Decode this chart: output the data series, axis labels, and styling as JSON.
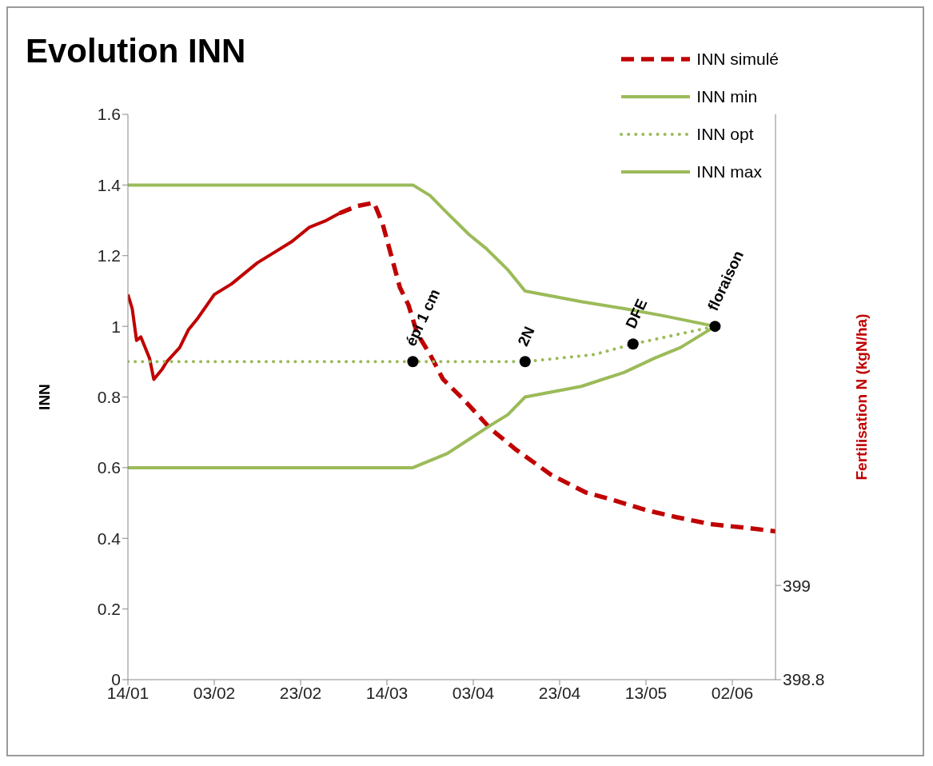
{
  "chart_data": {
    "type": "line",
    "title": "Evolution INN",
    "ylabel": "INN",
    "y2label": "Fertilisation N (kgN/ha)",
    "xlim": [
      "--01-14",
      "--06-12"
    ],
    "xticks": [
      {
        "value": "--01-14",
        "label": "14/01"
      },
      {
        "value": "--02-03",
        "label": "03/02"
      },
      {
        "value": "--02-23",
        "label": "23/02"
      },
      {
        "value": "--03-14",
        "label": "14/03"
      },
      {
        "value": "--04-03",
        "label": "03/04"
      },
      {
        "value": "--04-23",
        "label": "23/04"
      },
      {
        "value": "--05-13",
        "label": "13/05"
      },
      {
        "value": "--06-02",
        "label": "02/06"
      }
    ],
    "ylim": [
      0,
      1.6
    ],
    "yticks": [
      0,
      0.2,
      0.4,
      0.6,
      0.8,
      1,
      1.2,
      1.4,
      1.6
    ],
    "y2lim": [
      398.8,
      400
    ],
    "y2ticks": [
      398.8,
      399
    ],
    "legend": "top right",
    "grid": false,
    "marker": "none",
    "series": [
      {
        "name": "INN simulé",
        "color": "#c00000",
        "line_style": "dashed",
        "x": [
          "--03-03",
          "--03-07",
          "--03-11",
          "--03-13",
          "--03-15",
          "--03-17",
          "--03-19",
          "--03-21",
          "--03-24",
          "--03-27",
          "--04-01",
          "--04-07",
          "--04-13",
          "--04-21",
          "--04-29",
          "--05-05",
          "--05-13",
          "--05-20",
          "--05-28",
          "--06-05",
          "--06-12"
        ],
        "values": [
          1.32,
          1.34,
          1.35,
          1.29,
          1.2,
          1.11,
          1.06,
          0.98,
          0.92,
          0.85,
          0.79,
          0.71,
          0.65,
          0.58,
          0.53,
          0.51,
          0.48,
          0.46,
          0.44,
          0.43,
          0.42
        ]
      },
      {
        "color": "#c00000",
        "line_style": "solid",
        "x": [
          "--01-14",
          "--01-15",
          "--01-16",
          "--01-17",
          "--01-18",
          "--01-19",
          "--01-20",
          "--01-22",
          "--01-23",
          "--01-26",
          "--01-28",
          "--01-30",
          "--02-03",
          "--02-07",
          "--02-10",
          "--02-13",
          "--02-17",
          "--02-21",
          "--02-25",
          "--02-29",
          "--03-03"
        ],
        "values": [
          1.09,
          1.05,
          0.96,
          0.97,
          0.94,
          0.91,
          0.85,
          0.88,
          0.9,
          0.94,
          0.99,
          1.02,
          1.09,
          1.12,
          1.15,
          1.18,
          1.21,
          1.24,
          1.28,
          1.3,
          1.32
        ]
      },
      {
        "name": "INN min",
        "color": "#9bbb59",
        "line_style": "solid",
        "x": [
          "--01-14",
          "--03-20",
          "--03-28",
          "--04-02",
          "--04-07",
          "--04-11",
          "--04-15",
          "--04-28",
          "--05-08",
          "--05-15",
          "--05-21",
          "--05-29"
        ],
        "values": [
          0.6,
          0.6,
          0.64,
          0.68,
          0.72,
          0.75,
          0.8,
          0.83,
          0.87,
          0.91,
          0.94,
          1
        ]
      },
      {
        "name": "INN opt",
        "color": "#9bbb59",
        "line_style": "dotted",
        "x": [
          "--01-14",
          "--04-15",
          "--05-01",
          "--05-10",
          "--05-29"
        ],
        "values": [
          0.9,
          0.9,
          0.92,
          0.95,
          1
        ]
      },
      {
        "name": "INN max",
        "color": "#9bbb59",
        "line_style": "solid",
        "x": [
          "--01-14",
          "--03-20",
          "--03-24",
          "--03-28",
          "--04-02",
          "--04-06",
          "--04-11",
          "--04-15",
          "--04-28",
          "--05-08",
          "--05-17",
          "--05-29"
        ],
        "values": [
          1.4,
          1.4,
          1.37,
          1.32,
          1.26,
          1.22,
          1.16,
          1.1,
          1.07,
          1.05,
          1.03,
          1
        ]
      },
      {
        "type": "scatter",
        "marker": "circle",
        "color": "#000000",
        "x": [
          "--03-20",
          "--04-15",
          "--05-10",
          "--05-29"
        ],
        "values": [
          0.9,
          0.9,
          0.95,
          1
        ]
      }
    ],
    "annotations": [
      {
        "text": "épi 1 cm",
        "x": "--03-20",
        "y": 0.9
      },
      {
        "text": "2N",
        "x": "--04-15",
        "y": 0.9
      },
      {
        "text": "DFE",
        "x": "--05-10",
        "y": 0.95
      },
      {
        "text": "floraison",
        "x": "--05-29",
        "y": 1
      }
    ]
  }
}
